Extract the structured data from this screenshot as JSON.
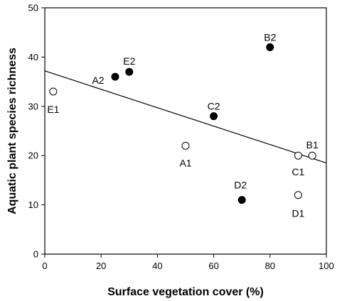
{
  "chart_data": {
    "type": "scatter",
    "title": "",
    "xlabel": "Surface vegetation cover (%)",
    "ylabel": "Aquatic plant species richness",
    "xlim": [
      0,
      100
    ],
    "ylim": [
      0,
      50
    ],
    "xticks": [
      0,
      20,
      40,
      60,
      80,
      100
    ],
    "yticks": [
      0,
      10,
      20,
      30,
      40,
      50
    ],
    "grid": false,
    "legend": "none",
    "series": [
      {
        "marker": "filled-circle",
        "points": [
          {
            "label": "A2",
            "x": 25,
            "y": 36
          },
          {
            "label": "E2",
            "x": 30,
            "y": 37
          },
          {
            "label": "C2",
            "x": 60,
            "y": 28
          },
          {
            "label": "B2",
            "x": 80,
            "y": 42
          },
          {
            "label": "D2",
            "x": 70,
            "y": 11
          }
        ]
      },
      {
        "marker": "open-circle",
        "points": [
          {
            "label": "E1",
            "x": 3,
            "y": 33
          },
          {
            "label": "A1",
            "x": 50,
            "y": 22
          },
          {
            "label": "C1",
            "x": 90,
            "y": 20
          },
          {
            "label": "B1",
            "x": 95,
            "y": 20
          },
          {
            "label": "D1",
            "x": 90,
            "y": 12
          }
        ]
      }
    ],
    "trendline": {
      "type": "linear",
      "x": [
        0,
        100
      ],
      "y": [
        37.2,
        18.5
      ]
    },
    "colors": {
      "axis": "#000000",
      "filled_marker": "#000000",
      "open_marker_fill": "#ffffff"
    }
  }
}
